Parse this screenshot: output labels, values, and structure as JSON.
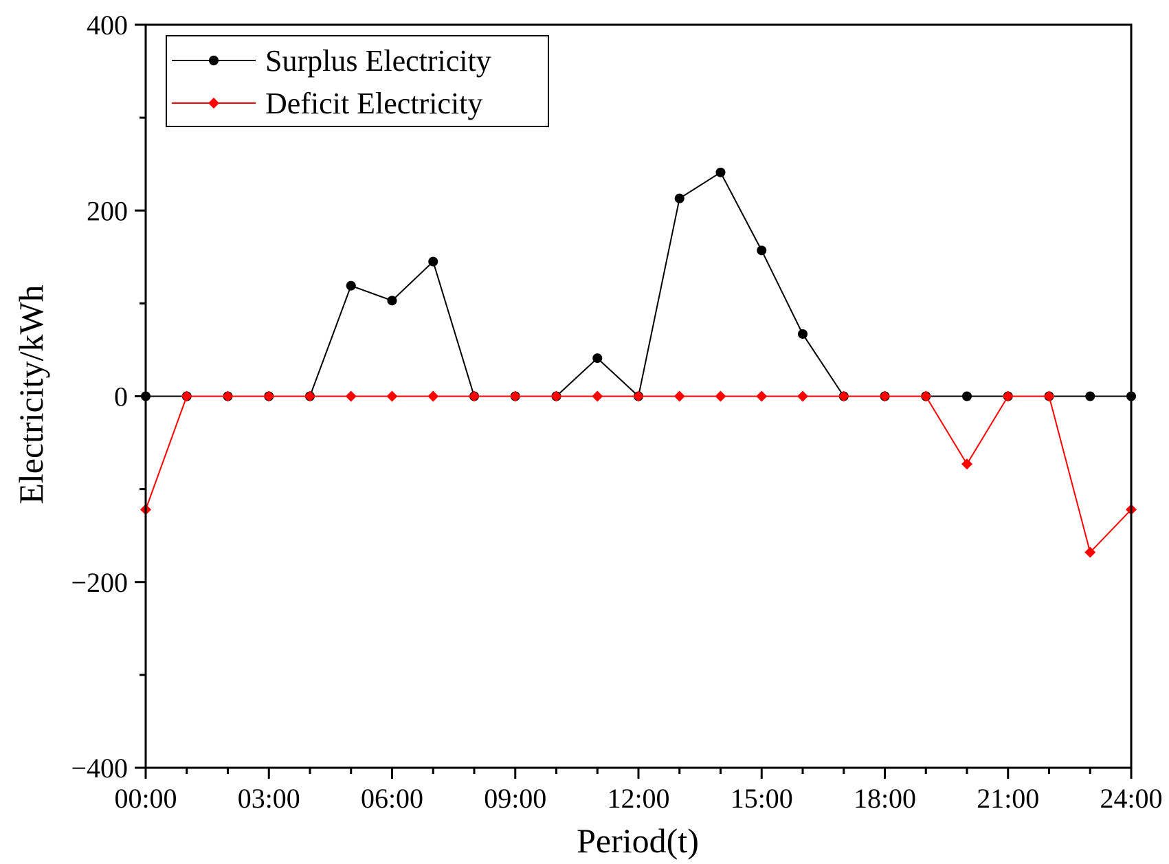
{
  "chart_data": {
    "type": "line",
    "title": "",
    "xlabel": "Period(t)",
    "ylabel": "Electricity/kWh",
    "xlim": [
      0,
      24
    ],
    "ylim": [
      -400,
      400
    ],
    "x_ticks": [
      "00:00",
      "03:00",
      "06:00",
      "09:00",
      "12:00",
      "15:00",
      "18:00",
      "21:00",
      "24:00"
    ],
    "y_ticks": [
      "−400",
      "−200",
      "0",
      "200",
      "400"
    ],
    "grid": false,
    "legend_position": "top-left",
    "x": [
      0,
      1,
      2,
      3,
      4,
      5,
      6,
      7,
      8,
      9,
      10,
      11,
      12,
      13,
      14,
      15,
      16,
      17,
      18,
      19,
      20,
      21,
      22,
      23,
      24
    ],
    "series": [
      {
        "name": "Surplus Electricity",
        "color": "#000000",
        "marker": "circle",
        "values": [
          0,
          0,
          0,
          0,
          0,
          119,
          103,
          145,
          0,
          0,
          0,
          41,
          0,
          213,
          241,
          157,
          67,
          0,
          0,
          0,
          0,
          0,
          0,
          0,
          0
        ]
      },
      {
        "name": "Deficit Electricity",
        "color": "#ff0000",
        "marker": "diamond",
        "values": [
          -122,
          0,
          0,
          0,
          0,
          0,
          0,
          0,
          0,
          0,
          0,
          0,
          0,
          0,
          0,
          0,
          0,
          0,
          0,
          0,
          -73,
          0,
          0,
          -168,
          -122
        ]
      }
    ]
  }
}
